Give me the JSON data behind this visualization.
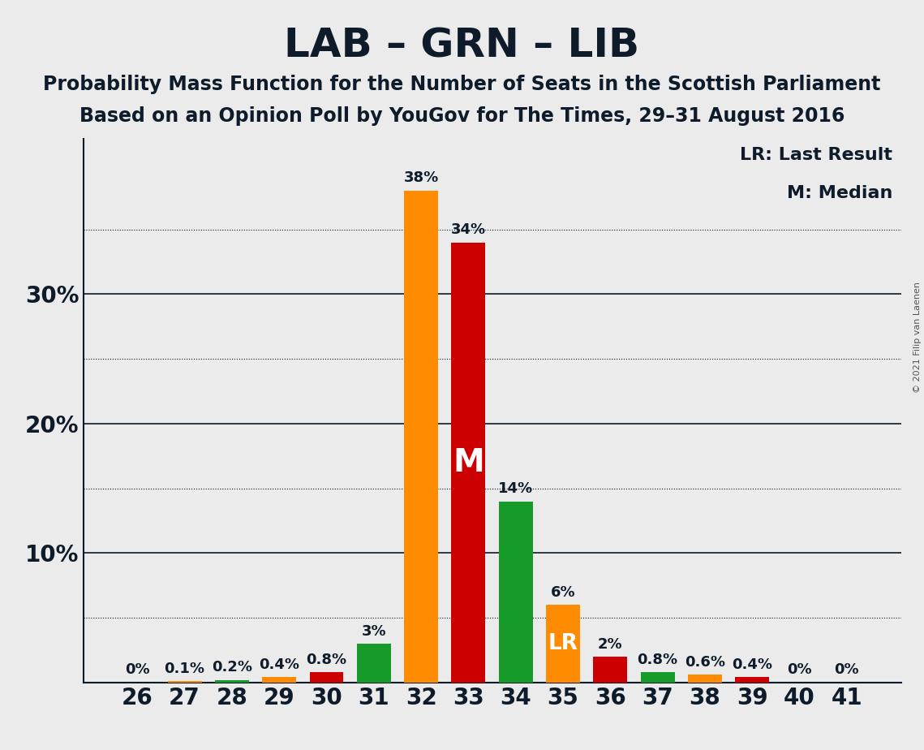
{
  "title": "LAB – GRN – LIB",
  "subtitle1": "Probability Mass Function for the Number of Seats in the Scottish Parliament",
  "subtitle2": "Based on an Opinion Poll by YouGov for The Times, 29–31 August 2016",
  "copyright": "© 2021 Filip van Laenen",
  "legend_lr": "LR: Last Result",
  "legend_m": "M: Median",
  "seats": [
    26,
    27,
    28,
    29,
    30,
    31,
    32,
    33,
    34,
    35,
    36,
    37,
    38,
    39,
    40,
    41
  ],
  "values": [
    0.0,
    0.1,
    0.2,
    0.4,
    0.8,
    3.0,
    38.0,
    34.0,
    14.0,
    6.0,
    2.0,
    0.8,
    0.6,
    0.4,
    0.0,
    0.0
  ],
  "labels": [
    "0%",
    "0.1%",
    "0.2%",
    "0.4%",
    "0.8%",
    "3%",
    "38%",
    "34%",
    "14%",
    "6%",
    "2%",
    "0.8%",
    "0.6%",
    "0.4%",
    "0%",
    "0%"
  ],
  "colors": [
    "#CC0000",
    "#FF8C00",
    "#169B2A",
    "#FF8C00",
    "#CC0000",
    "#169B2A",
    "#FF8C00",
    "#CC0000",
    "#169B2A",
    "#FF8C00",
    "#CC0000",
    "#169B2A",
    "#FF8C00",
    "#CC0000",
    "#169B2A",
    "#FF8C00"
  ],
  "median_seat": 33,
  "lr_seat": 35,
  "background_color": "#EBEBEB",
  "ylim_max": 42,
  "ytick_positions": [
    0,
    10,
    20,
    30,
    40
  ],
  "ytick_labels": [
    "",
    "10%",
    "20%",
    "30%",
    ""
  ],
  "solid_lines": [
    10,
    20,
    30
  ],
  "dotted_lines": [
    5,
    15,
    25,
    35
  ],
  "title_fontsize": 36,
  "subtitle_fontsize": 17,
  "label_fontsize": 13,
  "axis_fontsize": 20,
  "text_color": "#0d1b2a",
  "legend_fontsize": 16,
  "copyright_fontsize": 8
}
